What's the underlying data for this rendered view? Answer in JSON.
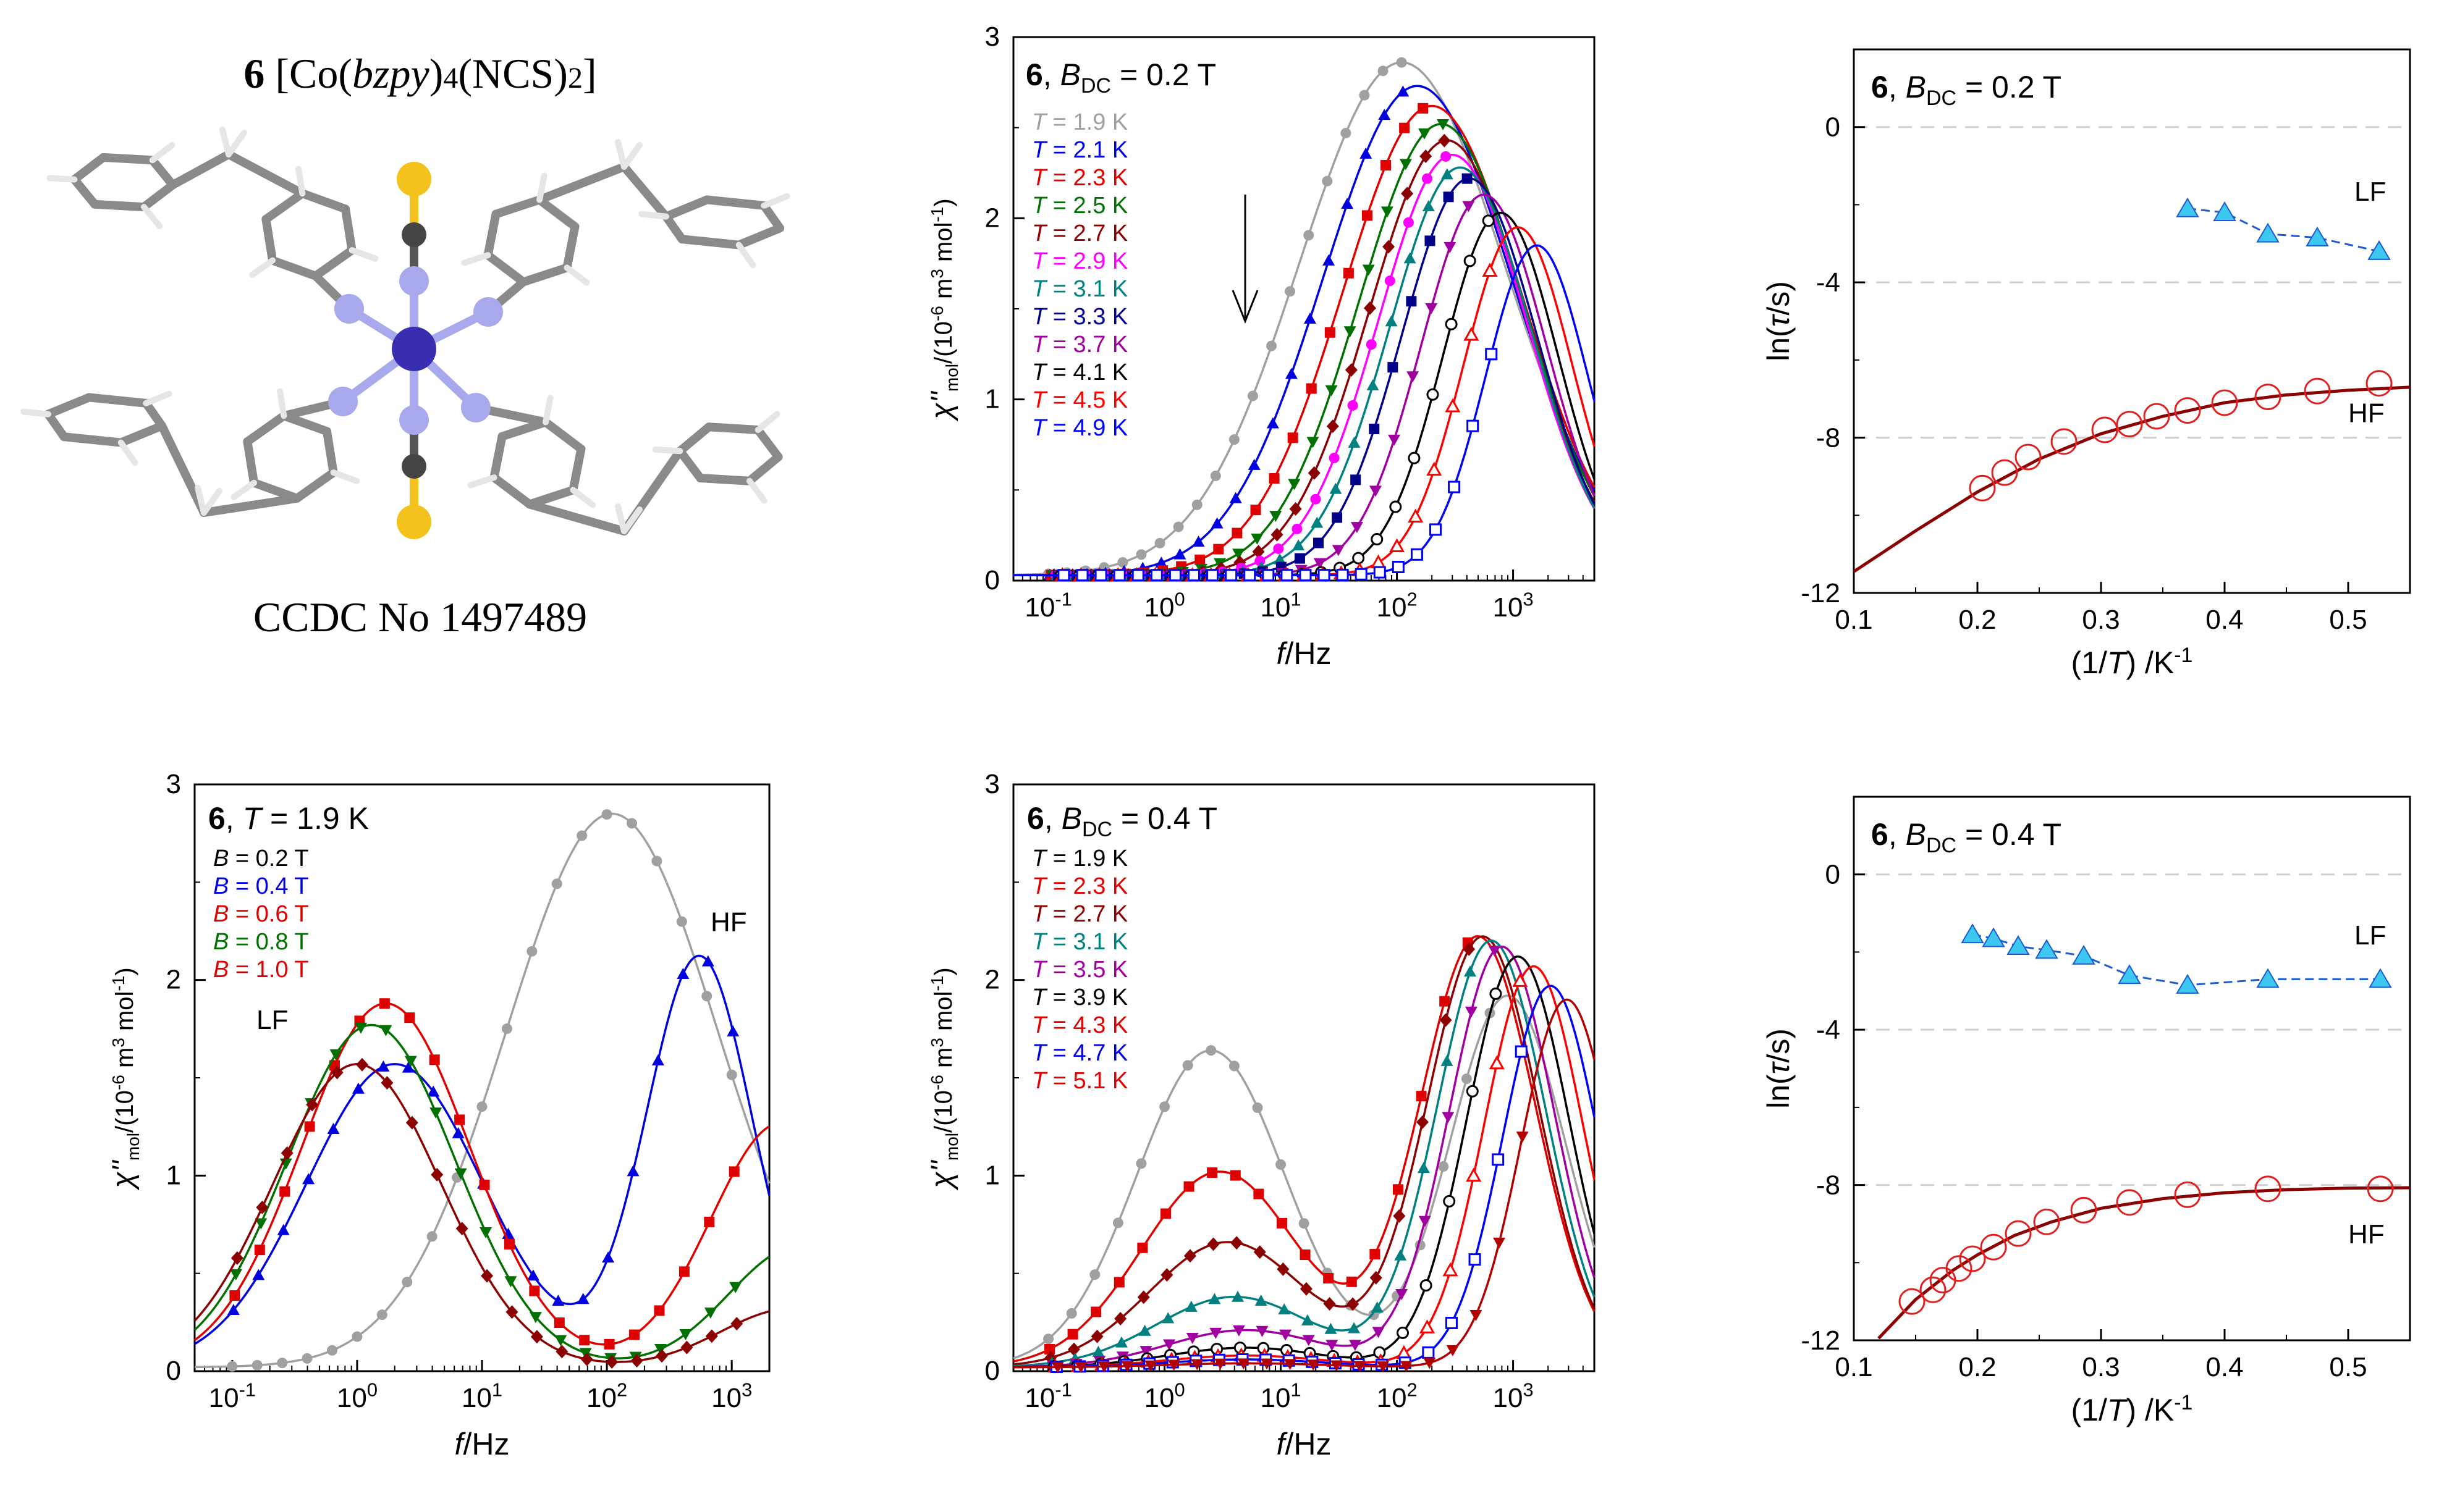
{
  "molecule": {
    "compound_number": "6",
    "formula_prefix": "[Co(",
    "ligand": "bzpy",
    "formula_suffix_1": ")",
    "subscript_4": "4",
    "formula_suffix_2": "(NCS)",
    "subscript_2": "2",
    "formula_close": "]",
    "ccdc": "CCDC No 1497489",
    "atom_colors": {
      "carbon": "#8a8a8a",
      "hydrogen": "#e6e6e6",
      "nitrogen": "#a7a9ec",
      "cobalt": "#3a2eb0",
      "sulfur": "#f4c21c"
    }
  },
  "chart_data": [
    {
      "id": "top-mid",
      "type": "scatter",
      "title_num": "6",
      "title_var": "B",
      "title_sub": "DC",
      "title_rest": " = 0.2 T",
      "xlabel": "f/Hz",
      "ylabel": "χ''mol/(10-6 m3 mol-1)",
      "xscale": "log",
      "xlim": [
        0.05,
        5000
      ],
      "ylim": [
        0,
        3
      ],
      "yticks": [
        "0",
        "1",
        "2",
        "3"
      ],
      "xticks": [
        "10-1",
        "100",
        "101",
        "102",
        "103"
      ],
      "arrow": "down",
      "series": [
        {
          "name": "T = 1.9 K",
          "color": "#a0a0a0",
          "marker": "circle",
          "peak_f": 110,
          "peak_y": 2.83,
          "width": 1.25
        },
        {
          "name": "T = 2.1 K",
          "color": "#0000e0",
          "marker": "triangle-up",
          "peak_f": 150,
          "peak_y": 2.7,
          "width": 1.15
        },
        {
          "name": "T = 2.3 K",
          "color": "#e00000",
          "marker": "square",
          "peak_f": 200,
          "peak_y": 2.59,
          "width": 1.08
        },
        {
          "name": "T = 2.5 K",
          "color": "#007000",
          "marker": "triangle-down",
          "peak_f": 240,
          "peak_y": 2.49,
          "width": 1.0
        },
        {
          "name": "T = 2.7 K",
          "color": "#8b0000",
          "marker": "diamond",
          "peak_f": 270,
          "peak_y": 2.4,
          "width": 0.95
        },
        {
          "name": "T = 2.9 K",
          "color": "#ff00ff",
          "marker": "circle-filled",
          "peak_f": 300,
          "peak_y": 2.32,
          "width": 0.9
        },
        {
          "name": "T = 3.1 K",
          "color": "#008080",
          "marker": "triangle-up",
          "peak_f": 350,
          "peak_y": 2.25,
          "width": 0.86
        },
        {
          "name": "T = 3.3 K",
          "color": "#00008b",
          "marker": "square",
          "peak_f": 420,
          "peak_y": 2.19,
          "width": 0.82
        },
        {
          "name": "T = 3.7 K",
          "color": "#a000a0",
          "marker": "triangle-down",
          "peak_f": 560,
          "peak_y": 2.1,
          "width": 0.76
        },
        {
          "name": "T = 4.1 K",
          "color": "#000000",
          "marker": "circle-open",
          "peak_f": 780,
          "peak_y": 2.0,
          "width": 0.7
        },
        {
          "name": "T = 4.5 K",
          "color": "#ff0000",
          "marker": "triangle-open",
          "peak_f": 1100,
          "peak_y": 1.92,
          "width": 0.66
        },
        {
          "name": "T = 4.9 K",
          "color": "#0000ff",
          "marker": "square-open",
          "peak_f": 1600,
          "peak_y": 1.82,
          "width": 0.62
        }
      ]
    },
    {
      "id": "top-right",
      "type": "scatter",
      "title_num": "6",
      "title_var": "B",
      "title_sub": "DC",
      "title_rest": " = 0.2 T",
      "xlabel": "(1/T) /K-1",
      "ylabel": "ln(τ/s)",
      "xlim": [
        0.1,
        0.55
      ],
      "ylim": [
        -12,
        2
      ],
      "yticks": [
        "-12",
        "-8",
        "-4",
        "0"
      ],
      "xticks": [
        "0.1",
        "0.2",
        "0.3",
        "0.4",
        "0.5"
      ],
      "series": [
        {
          "name": "LF",
          "color": "#1e5bd0",
          "fill": "#3cc8f0",
          "marker": "triangle",
          "x": [
            0.37,
            0.4,
            0.435,
            0.475,
            0.525
          ],
          "y": [
            -2.1,
            -2.2,
            -2.75,
            -2.85,
            -3.2
          ]
        },
        {
          "name": "HF",
          "color": "#e02020",
          "marker": "circle-open",
          "x": [
            0.204,
            0.222,
            0.241,
            0.27,
            0.303,
            0.323,
            0.345,
            0.37,
            0.4,
            0.435,
            0.475,
            0.525
          ],
          "y": [
            -9.3,
            -8.9,
            -8.5,
            -8.1,
            -7.8,
            -7.65,
            -7.45,
            -7.3,
            -7.1,
            -6.95,
            -6.8,
            -6.6
          ]
        }
      ],
      "fit": {
        "color": "#8b0000",
        "x": [
          0.1,
          0.15,
          0.2,
          0.25,
          0.3,
          0.35,
          0.4,
          0.45,
          0.5,
          0.55
        ],
        "y": [
          -11.45,
          -10.4,
          -9.4,
          -8.55,
          -7.9,
          -7.45,
          -7.1,
          -6.9,
          -6.78,
          -6.7
        ]
      },
      "labels": [
        "LF",
        "HF"
      ]
    },
    {
      "id": "bottom-left",
      "type": "scatter",
      "title_num": "6",
      "title_var": "T",
      "title_rest": " = 1.9 K",
      "xlabel": "f/Hz",
      "ylabel": "χ''mol/(10-6 m3 mol-1)",
      "xscale": "log",
      "xlim": [
        0.05,
        2000
      ],
      "ylim": [
        0,
        3
      ],
      "yticks": [
        "0",
        "1",
        "2",
        "3"
      ],
      "xticks": [
        "10-1",
        "100",
        "101",
        "102",
        "103"
      ],
      "series": [
        {
          "name": "B = 0.2 T",
          "color": "#a0a0a0",
          "marker": "circle",
          "lf": [
            0,
            0,
            1
          ],
          "hf": [
            2.83,
            110,
            1.2
          ]
        },
        {
          "name": "B = 0.4 T",
          "color": "#0000e0",
          "marker": "triangle-up",
          "lf": [
            1.55,
            2.0,
            1.0
          ],
          "hf": [
            2.1,
            550,
            0.6
          ]
        },
        {
          "name": "B = 0.6 T",
          "color": "#e00000",
          "marker": "square",
          "lf": [
            1.86,
            1.7,
            0.95
          ],
          "hf": [
            1.25,
            2500,
            0.8
          ]
        },
        {
          "name": "B = 0.8 T",
          "color": "#007000",
          "marker": "triangle-down",
          "lf": [
            1.75,
            1.3,
            0.95
          ],
          "hf": [
            0.62,
            3500,
            0.8
          ]
        },
        {
          "name": "B = 1.0 T",
          "color": "#8b0000",
          "marker": "diamond",
          "lf": [
            1.55,
            1.0,
            0.95
          ],
          "hf": [
            0.3,
            3000,
            0.8
          ]
        }
      ],
      "legend_text": [
        "B = 0.2 T",
        "B = 0.4 T",
        "B = 0.6 T",
        "B = 0.8 T",
        "B = 1.0 T"
      ],
      "legend_colors": [
        "#000000",
        "#0000e0",
        "#e00000",
        "#007000",
        "#e00000"
      ],
      "labels": [
        "LF",
        "HF"
      ]
    },
    {
      "id": "bottom-mid",
      "type": "scatter",
      "title_num": "6",
      "title_var": "B",
      "title_sub": "DC",
      "title_rest": " = 0.4 T",
      "xlabel": "f/Hz",
      "ylabel": "χ''mol/(10-6 m3 mol-1)",
      "xscale": "log",
      "xlim": [
        0.05,
        5000
      ],
      "ylim": [
        0,
        3
      ],
      "yticks": [
        "0",
        "1",
        "2",
        "3"
      ],
      "xticks": [
        "10-1",
        "100",
        "101",
        "102",
        "103"
      ],
      "series": [
        {
          "name": "T = 1.9 K",
          "color": "#a0a0a0",
          "marker": "circle",
          "lf": [
            1.62,
            2.5,
            0.9
          ],
          "hf": [
            1.9,
            900,
            0.7
          ]
        },
        {
          "name": "T = 2.3 K",
          "color": "#e00000",
          "marker": "square",
          "lf": [
            1.0,
            3.0,
            0.95
          ],
          "hf": [
            2.2,
            500,
            0.7
          ]
        },
        {
          "name": "T = 2.7 K",
          "color": "#8b0000",
          "marker": "diamond",
          "lf": [
            0.64,
            3.5,
            0.95
          ],
          "hf": [
            2.2,
            550,
            0.68
          ]
        },
        {
          "name": "T = 3.1 K",
          "color": "#008080",
          "marker": "triangle-up",
          "lf": [
            0.36,
            4.0,
            0.95
          ],
          "hf": [
            2.18,
            650,
            0.66
          ]
        },
        {
          "name": "T = 3.5 K",
          "color": "#a000a0",
          "marker": "triangle-down",
          "lf": [
            0.19,
            5.0,
            0.95
          ],
          "hf": [
            2.15,
            800,
            0.64
          ]
        },
        {
          "name": "T = 3.9 K",
          "color": "#000000",
          "marker": "circle-open",
          "lf": [
            0.1,
            5.0,
            0.95
          ],
          "hf": [
            2.1,
            1100,
            0.62
          ]
        },
        {
          "name": "T = 4.3 K",
          "color": "#ff0000",
          "marker": "triangle-open",
          "lf": [
            0.06,
            5.0,
            0.95
          ],
          "hf": [
            2.05,
            1500,
            0.6
          ]
        },
        {
          "name": "T = 4.7 K",
          "color": "#0000ff",
          "marker": "square-open",
          "lf": [
            0.04,
            5.0,
            0.95
          ],
          "hf": [
            1.95,
            2100,
            0.58
          ]
        },
        {
          "name": "T = 5.1 K",
          "color": "#b00000",
          "marker": "triangle-down",
          "lf": [
            0.02,
            5.0,
            0.95
          ],
          "hf": [
            1.88,
            2900,
            0.56
          ]
        }
      ],
      "legend_colors": [
        "#000000",
        "#e00000",
        "#8b0000",
        "#008080",
        "#a000a0",
        "#000000",
        "#e00000",
        "#0000e0",
        "#e00000"
      ]
    },
    {
      "id": "bottom-right",
      "type": "scatter",
      "title_num": "6",
      "title_var": "B",
      "title_sub": "DC",
      "title_rest": " = 0.4 T",
      "xlabel": "(1/T) /K-1",
      "ylabel": "ln(τ/s)",
      "xlim": [
        0.1,
        0.55
      ],
      "ylim": [
        -12,
        2
      ],
      "yticks": [
        "-12",
        "-8",
        "-4",
        "0"
      ],
      "xticks": [
        "0.1",
        "0.2",
        "0.3",
        "0.4",
        "0.5"
      ],
      "series": [
        {
          "name": "LF",
          "color": "#1e5bd0",
          "fill": "#3cc8f0",
          "marker": "triangle",
          "x": [
            0.196,
            0.213,
            0.233,
            0.256,
            0.286,
            0.323,
            0.37,
            0.435,
            0.526
          ],
          "y": [
            -1.55,
            -1.65,
            -1.85,
            -1.95,
            -2.1,
            -2.6,
            -2.85,
            -2.7,
            -2.7
          ]
        },
        {
          "name": "HF",
          "color": "#e02020",
          "marker": "circle-open",
          "x": [
            0.147,
            0.164,
            0.172,
            0.185,
            0.196,
            0.213,
            0.233,
            0.256,
            0.286,
            0.323,
            0.37,
            0.435,
            0.526
          ],
          "y": [
            -11.0,
            -10.7,
            -10.45,
            -10.15,
            -9.9,
            -9.6,
            -9.25,
            -8.95,
            -8.65,
            -8.45,
            -8.25,
            -8.1,
            -8.1
          ]
        }
      ],
      "fit": {
        "color": "#8b0000",
        "x": [
          0.12,
          0.15,
          0.18,
          0.2,
          0.23,
          0.26,
          0.3,
          0.35,
          0.4,
          0.45,
          0.5,
          0.55
        ],
        "y": [
          -11.95,
          -10.95,
          -10.2,
          -9.8,
          -9.3,
          -8.95,
          -8.6,
          -8.35,
          -8.2,
          -8.12,
          -8.08,
          -8.07
        ]
      },
      "labels": [
        "LF",
        "HF"
      ]
    }
  ]
}
